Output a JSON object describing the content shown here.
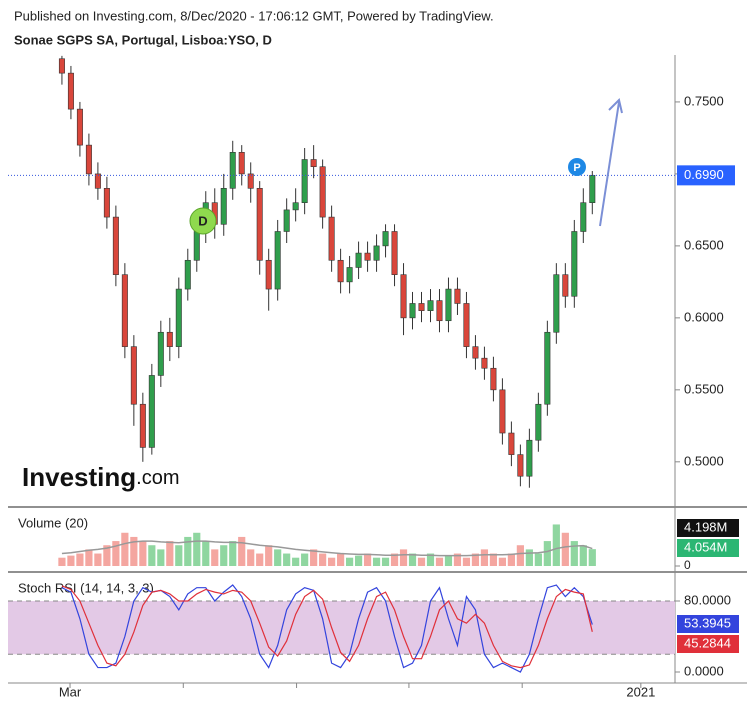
{
  "header": {
    "published": "Published on Investing.com, 8/Dec/2020 - 17:06:12 GMT, Powered by TradingView."
  },
  "watermark": {
    "brand": "Investing",
    "suffix": ".com"
  },
  "annotations": [
    {
      "text": "D"
    },
    {
      "text": "P"
    }
  ],
  "chart_data": [
    {
      "type": "candlestick",
      "title": "Sonae SGPS SA, Portugal, Lisboa:YSO, D",
      "up_color": "#2f9e4c",
      "down_color": "#d9463b",
      "open": [
        0.78,
        0.77,
        0.745,
        0.72,
        0.7,
        0.69,
        0.67,
        0.63,
        0.58,
        0.54,
        0.51,
        0.56,
        0.59,
        0.58,
        0.62,
        0.64,
        0.66,
        0.68,
        0.665,
        0.69,
        0.715,
        0.7,
        0.69,
        0.64,
        0.62,
        0.66,
        0.675,
        0.68,
        0.71,
        0.705,
        0.67,
        0.64,
        0.625,
        0.635,
        0.645,
        0.64,
        0.65,
        0.66,
        0.63,
        0.6,
        0.61,
        0.605,
        0.612,
        0.598,
        0.62,
        0.61,
        0.58,
        0.572,
        0.565,
        0.55,
        0.52,
        0.505,
        0.49,
        0.515,
        0.54,
        0.59,
        0.63,
        0.615,
        0.66,
        0.68
      ],
      "high": [
        0.782,
        0.775,
        0.75,
        0.728,
        0.708,
        0.698,
        0.678,
        0.638,
        0.588,
        0.548,
        0.568,
        0.598,
        0.6,
        0.628,
        0.648,
        0.668,
        0.688,
        0.69,
        0.7,
        0.723,
        0.72,
        0.708,
        0.695,
        0.648,
        0.668,
        0.683,
        0.69,
        0.718,
        0.72,
        0.71,
        0.678,
        0.648,
        0.643,
        0.653,
        0.653,
        0.658,
        0.665,
        0.665,
        0.638,
        0.618,
        0.618,
        0.62,
        0.62,
        0.628,
        0.628,
        0.618,
        0.588,
        0.58,
        0.573,
        0.558,
        0.528,
        0.512,
        0.523,
        0.548,
        0.598,
        0.638,
        0.638,
        0.668,
        0.69,
        0.702
      ],
      "low": [
        0.762,
        0.738,
        0.712,
        0.692,
        0.682,
        0.662,
        0.622,
        0.572,
        0.525,
        0.5,
        0.505,
        0.552,
        0.57,
        0.572,
        0.612,
        0.632,
        0.652,
        0.655,
        0.657,
        0.682,
        0.692,
        0.68,
        0.63,
        0.605,
        0.612,
        0.652,
        0.667,
        0.672,
        0.697,
        0.662,
        0.632,
        0.617,
        0.617,
        0.627,
        0.632,
        0.632,
        0.642,
        0.622,
        0.588,
        0.592,
        0.597,
        0.597,
        0.59,
        0.59,
        0.602,
        0.572,
        0.564,
        0.557,
        0.542,
        0.512,
        0.497,
        0.483,
        0.482,
        0.507,
        0.532,
        0.582,
        0.607,
        0.607,
        0.652,
        0.672
      ],
      "close": [
        0.77,
        0.745,
        0.72,
        0.7,
        0.69,
        0.67,
        0.63,
        0.58,
        0.54,
        0.51,
        0.56,
        0.59,
        0.58,
        0.62,
        0.64,
        0.66,
        0.68,
        0.665,
        0.69,
        0.715,
        0.7,
        0.69,
        0.64,
        0.62,
        0.66,
        0.675,
        0.68,
        0.71,
        0.705,
        0.67,
        0.64,
        0.625,
        0.635,
        0.645,
        0.64,
        0.65,
        0.66,
        0.63,
        0.6,
        0.61,
        0.605,
        0.612,
        0.598,
        0.62,
        0.61,
        0.58,
        0.572,
        0.565,
        0.55,
        0.52,
        0.505,
        0.49,
        0.515,
        0.54,
        0.59,
        0.63,
        0.615,
        0.66,
        0.68,
        0.699
      ],
      "last_label": "0.6990",
      "xlim": [
        -6,
        68.2
      ],
      "xticks": [
        {
          "value": 0.9,
          "label": "Mar"
        },
        {
          "value": 13.5,
          "label": null
        },
        {
          "value": 26.1,
          "label": null
        },
        {
          "value": 38.6,
          "label": null
        },
        {
          "value": 51.2,
          "label": null
        },
        {
          "value": 64.4,
          "label": "2021"
        }
      ],
      "ylim": [
        0.47,
        0.7826
      ],
      "yticks": [
        {
          "value": 0.5,
          "label": "0.5000"
        },
        {
          "value": 0.55,
          "label": "0.5500"
        },
        {
          "value": 0.6,
          "label": "0.6000"
        },
        {
          "value": 0.65,
          "label": "0.6500"
        },
        {
          "value": 0.7,
          "label": "0.7000"
        },
        {
          "value": 0.75,
          "label": "0.7500"
        }
      ]
    },
    {
      "type": "bar",
      "title": "Volume (20)",
      "up_color": "#8fd6a0",
      "down_color": "#f4a6a0",
      "ma_color": "#999999",
      "values": [
        2,
        2.5,
        3,
        4,
        3,
        5,
        6,
        8,
        7,
        6,
        5,
        4,
        6,
        5,
        7,
        8,
        6,
        4,
        5,
        6,
        7,
        4,
        3,
        5,
        4,
        3,
        2,
        3,
        4,
        3,
        2,
        3,
        2,
        2.5,
        3,
        2,
        2,
        3,
        4,
        3,
        2,
        3,
        2,
        2.5,
        3,
        2,
        3,
        4,
        3,
        2,
        3,
        5,
        4,
        3,
        6,
        10,
        8,
        6,
        5,
        4.054
      ],
      "ma_values": [
        3,
        3.2,
        3.5,
        3.8,
        4,
        4.3,
        4.8,
        5.4,
        5.8,
        6,
        6,
        5.8,
        5.7,
        5.6,
        5.8,
        6,
        6,
        5.8,
        5.7,
        5.7,
        5.6,
        5.3,
        5,
        4.8,
        4.6,
        4.3,
        4,
        3.8,
        3.6,
        3.4,
        3.2,
        3,
        2.9,
        2.8,
        2.8,
        2.7,
        2.6,
        2.6,
        2.7,
        2.7,
        2.6,
        2.6,
        2.5,
        2.5,
        2.5,
        2.5,
        2.6,
        2.7,
        2.7,
        2.7,
        2.8,
        3,
        3.1,
        3.2,
        3.5,
        4.2,
        4.6,
        4.8,
        4.9,
        4.198
      ],
      "ma_label": "4.198M",
      "last_label": "4.054M",
      "ylim": [
        0,
        13
      ],
      "yticks": [
        0
      ]
    },
    {
      "type": "line",
      "title": "Stoch RSI (14, 14, 3, 3)",
      "band": [
        20,
        80
      ],
      "band_color": "#e3c9e6",
      "series": [
        {
          "color": "#3344dd",
          "last_label": "53.3945",
          "values": [
            95,
            90,
            60,
            20,
            5,
            5,
            10,
            40,
            80,
            95,
            90,
            92,
            85,
            70,
            88,
            95,
            95,
            80,
            90,
            98,
            85,
            60,
            20,
            5,
            30,
            70,
            88,
            95,
            92,
            60,
            10,
            5,
            20,
            60,
            90,
            95,
            80,
            40,
            5,
            10,
            30,
            80,
            95,
            60,
            30,
            85,
            70,
            20,
            5,
            10,
            5,
            0,
            20,
            60,
            95,
            98,
            85,
            95,
            85,
            53.3945
          ]
        },
        {
          "color": "#e0303a",
          "last_label": "45.2844",
          "values": [
            97,
            93,
            80,
            55,
            30,
            10,
            7,
            20,
            45,
            75,
            90,
            92,
            88,
            80,
            80,
            88,
            93,
            90,
            88,
            92,
            90,
            80,
            55,
            28,
            18,
            35,
            65,
            85,
            92,
            82,
            50,
            22,
            12,
            30,
            60,
            85,
            90,
            70,
            40,
            15,
            15,
            40,
            70,
            80,
            60,
            55,
            65,
            55,
            30,
            12,
            7,
            5,
            8,
            30,
            60,
            85,
            93,
            90,
            88,
            45.2844
          ]
        }
      ],
      "ylim": [
        -9,
        109.3
      ],
      "yticks": [
        {
          "value": 0,
          "label": "0.0000"
        },
        {
          "value": 80,
          "label": "80.0000"
        }
      ]
    }
  ]
}
